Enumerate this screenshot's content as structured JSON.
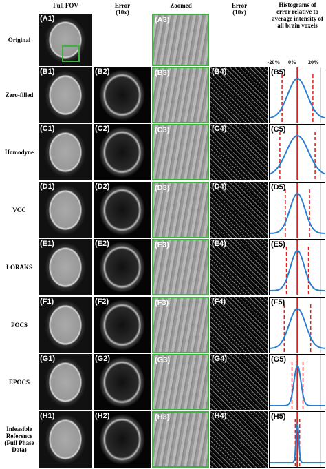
{
  "columns": [
    "Full FOV",
    "Error (10x)",
    "Zoomed",
    "Error (10x)",
    "Histograms of error relative to average intensity of all brain voxels"
  ],
  "histogram_axis": [
    "-20%",
    "0%",
    "20%"
  ],
  "original": {
    "label": "Original",
    "panels": [
      "(A1)",
      "(A3)"
    ]
  },
  "rows": [
    {
      "label": "Zero-filled",
      "panels": [
        "(B1)",
        "(B2)",
        "(B3)",
        "(B4)",
        "(B5)"
      ]
    },
    {
      "label": "Homodyne",
      "panels": [
        "(C1)",
        "(C2)",
        "(C3)",
        "(C4)",
        "(C5)"
      ]
    },
    {
      "label": "VCC",
      "panels": [
        "(D1)",
        "(D2)",
        "(D3)",
        "(D4)",
        "(D5)"
      ]
    },
    {
      "label": "LORAKS",
      "panels": [
        "(E1)",
        "(E2)",
        "(E3)",
        "(E4)",
        "(E5)"
      ]
    },
    {
      "label": "POCS",
      "panels": [
        "(F1)",
        "(F2)",
        "(F3)",
        "(F4)",
        "(F5)"
      ]
    },
    {
      "label": "EPOCS",
      "panels": [
        "(G1)",
        "(G2)",
        "(G3)",
        "(G4)",
        "(G5)"
      ]
    },
    {
      "label": "Infeasible Reference (Full Phase Data)",
      "panels": [
        "(H1)",
        "(H2)",
        "(H3)",
        "(H4)",
        "(H5)"
      ]
    }
  ]
}
